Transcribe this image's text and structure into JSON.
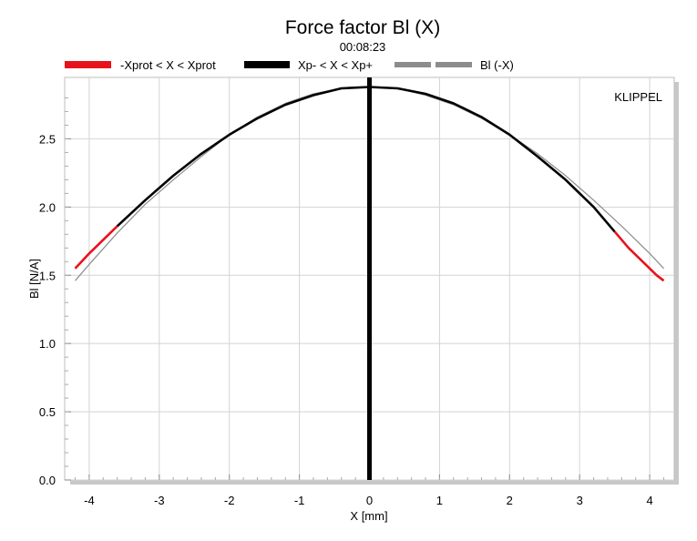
{
  "chart_data": {
    "type": "line",
    "title": "Force factor Bl (X)",
    "subtitle": "00:08:23",
    "watermark": "KLIPPEL",
    "xlabel": "X [mm]",
    "ylabel": "Bl [N/A]",
    "xlim": [
      -4.35,
      4.35
    ],
    "ylim": [
      0.0,
      2.95
    ],
    "xticks": [
      -4,
      -3,
      -2,
      -1,
      0,
      1,
      2,
      3,
      4
    ],
    "xtick_labels": [
      "-4",
      "-3",
      "-2",
      "-1",
      "0",
      "1",
      "2",
      "3",
      "4"
    ],
    "yticks": [
      0.0,
      0.5,
      1.0,
      1.5,
      2.0,
      2.5
    ],
    "ytick_labels": [
      "0.0",
      "0.5",
      "1.0",
      "1.5",
      "2.0",
      "2.5"
    ],
    "grid": true,
    "legend_position": "top",
    "colors": {
      "red": "#e8121a",
      "black": "#000000",
      "gray": "#8c8c8c",
      "grid": "#d4d4d4",
      "shadow": "#c8c8c8"
    },
    "vertical_line_x": 0,
    "series": [
      {
        "name": "-Xprot < X < Xprot",
        "color": "#e8121a",
        "x": [
          -4.2,
          -4.0,
          -3.8,
          -3.6,
          3.5,
          3.7,
          3.9,
          4.1,
          4.2
        ],
        "y": [
          1.55,
          1.66,
          1.76,
          1.86,
          1.82,
          1.7,
          1.6,
          1.5,
          1.46
        ]
      },
      {
        "name": "Xp- < X < Xp+",
        "color": "#000000",
        "x": [
          -3.6,
          -3.2,
          -2.8,
          -2.4,
          -2.0,
          -1.6,
          -1.2,
          -0.8,
          -0.4,
          0.0,
          0.4,
          0.8,
          1.2,
          1.6,
          2.0,
          2.4,
          2.8,
          3.2,
          3.5
        ],
        "y": [
          1.86,
          2.05,
          2.23,
          2.39,
          2.53,
          2.65,
          2.75,
          2.82,
          2.87,
          2.88,
          2.87,
          2.83,
          2.76,
          2.66,
          2.53,
          2.37,
          2.2,
          2.0,
          1.82
        ]
      },
      {
        "name": "Bl (-X)",
        "color": "#8c8c8c",
        "x": [
          -4.2,
          -4.0,
          -3.6,
          -3.2,
          -2.8,
          -2.4,
          -2.0,
          -1.6,
          -1.2,
          -0.8,
          -0.4,
          0.0,
          0.4,
          0.8,
          1.2,
          1.6,
          2.0,
          2.4,
          2.8,
          3.2,
          3.6,
          4.0,
          4.2
        ],
        "y": [
          1.46,
          1.58,
          1.81,
          2.02,
          2.2,
          2.37,
          2.53,
          2.66,
          2.76,
          2.83,
          2.87,
          2.88,
          2.87,
          2.82,
          2.75,
          2.65,
          2.53,
          2.39,
          2.23,
          2.05,
          1.86,
          1.66,
          1.55
        ]
      }
    ]
  }
}
